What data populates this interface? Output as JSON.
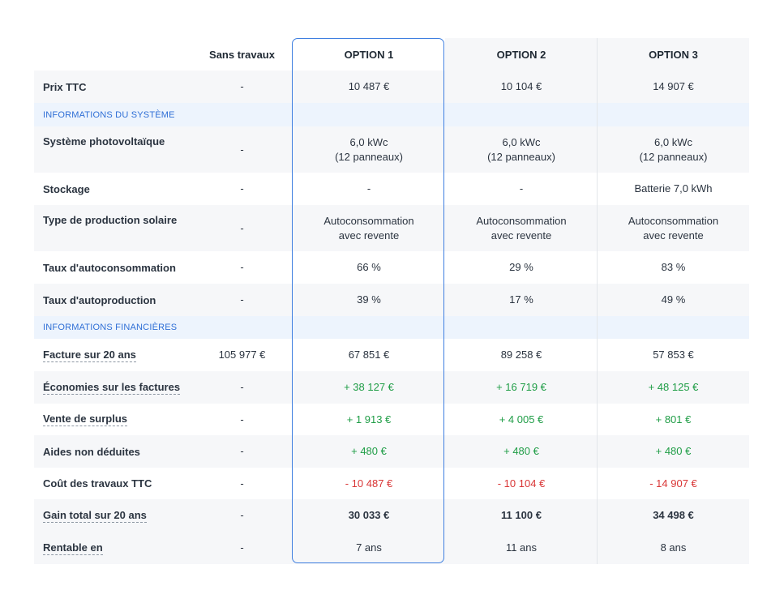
{
  "headers": [
    "Sans travaux",
    "OPTION 1",
    "OPTION 2",
    "OPTION 3"
  ],
  "sections": {
    "system": "INFORMATIONS DU SYSTÈME",
    "financial": "INFORMATIONS FINANCIÈRES"
  },
  "rows": {
    "prix": {
      "label": "Prix TTC",
      "values": [
        "-",
        "10 487 €",
        "10 104 €",
        "14 907 €"
      ]
    },
    "systeme": {
      "label": "Système photovoltaïque",
      "values": [
        "-",
        "6,0 kWc\n(12 panneaux)",
        "6,0 kWc\n(12 panneaux)",
        "6,0 kWc\n(12 panneaux)"
      ]
    },
    "stockage": {
      "label": "Stockage",
      "values": [
        "-",
        "-",
        "-",
        "Batterie 7,0 kWh"
      ]
    },
    "type_prod": {
      "label": "Type de production solaire",
      "values": [
        "-",
        "Autoconsommation\navec revente",
        "Autoconsommation\navec revente",
        "Autoconsommation\navec revente"
      ]
    },
    "taux_autoconso": {
      "label": "Taux d'autoconsommation",
      "values": [
        "-",
        "66 %",
        "29 %",
        "83 %"
      ]
    },
    "taux_autoprod": {
      "label": "Taux d'autoproduction",
      "values": [
        "-",
        "39 %",
        "17 %",
        "49 %"
      ]
    },
    "facture": {
      "label": "Facture sur 20 ans",
      "values": [
        "105 977 €",
        "67 851 €",
        "89 258 €",
        "57 853 €"
      ]
    },
    "economies": {
      "label": "Économies sur les factures",
      "values": [
        "-",
        "+ 38 127 €",
        "+ 16 719 €",
        "+ 48 125 €"
      ]
    },
    "vente": {
      "label": "Vente de surplus",
      "values": [
        "-",
        "+ 1 913 €",
        "+ 4 005 €",
        "+ 801 €"
      ]
    },
    "aides": {
      "label": "Aides non déduites",
      "values": [
        "-",
        "+ 480 €",
        "+ 480 €",
        "+ 480 €"
      ]
    },
    "cout": {
      "label": "Coût des travaux TTC",
      "values": [
        "-",
        "- 10 487 €",
        "- 10 104 €",
        "- 14 907 €"
      ]
    },
    "gain": {
      "label": "Gain total sur 20 ans",
      "values": [
        "-",
        "30 033 €",
        "11 100 €",
        "34 498 €"
      ]
    },
    "rentable": {
      "label": "Rentable en",
      "values": [
        "-",
        "7 ans",
        "11 ans",
        "8 ans"
      ]
    }
  },
  "colors": {
    "accent": "#3f7fe0",
    "section_text": "#2f6fd6",
    "positive": "#1f9d46",
    "negative": "#d93636",
    "row_alt": "#f6f7f9",
    "section_bg": "#edf4fd"
  }
}
